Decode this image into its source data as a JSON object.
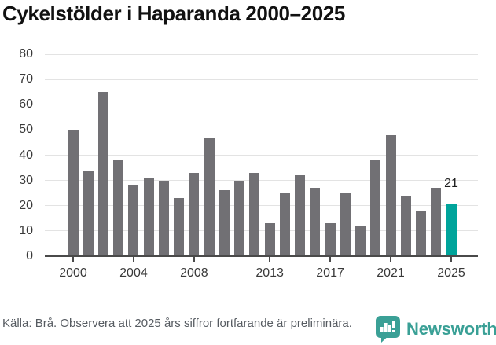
{
  "title": "Cykelstölder i Haparanda 2000–2025",
  "chart_data": {
    "type": "bar",
    "title": "Cykelstölder i Haparanda 2000–2025",
    "categories": [
      2000,
      2001,
      2002,
      2003,
      2004,
      2005,
      2006,
      2007,
      2008,
      2009,
      2010,
      2011,
      2012,
      2013,
      2014,
      2015,
      2016,
      2017,
      2018,
      2019,
      2020,
      2021,
      2022,
      2023,
      2024,
      2025
    ],
    "values": [
      50,
      34,
      65,
      38,
      28,
      31,
      30,
      23,
      33,
      47,
      26,
      30,
      33,
      13,
      25,
      32,
      27,
      13,
      25,
      12,
      38,
      48,
      24,
      18,
      27,
      21
    ],
    "highlight_category": 2025,
    "highlight_value": 21,
    "annotation_label": "21",
    "bar_color": "#717074",
    "highlight_color": "#00a49b",
    "axis_color": "#4a4a4a",
    "grid_color": "#e3e3e3",
    "grid": true,
    "legend_position": "none",
    "ylim": [
      0,
      80
    ],
    "yticks": [
      0,
      10,
      20,
      30,
      40,
      50,
      60,
      70,
      80
    ],
    "xtick_labels": [
      "2000",
      "2004",
      "2008",
      "2013",
      "2017",
      "2021",
      "2025"
    ]
  },
  "footer": {
    "source_note": "Källa: Brå. Observera att 2025 års siffror fortfarande är preliminära."
  },
  "branding": {
    "name": "Newsworthy",
    "color": "#3aa096",
    "icon": "bar-chart-speech-bubble-icon"
  }
}
